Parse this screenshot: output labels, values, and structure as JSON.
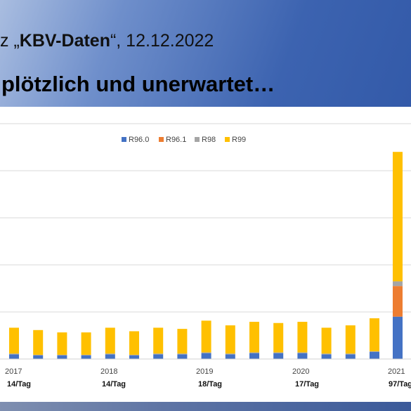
{
  "slide": {
    "subtitle_prefix": "z „",
    "subtitle_bold": "KBV-Daten",
    "subtitle_suffix": "“, 12.12.2022",
    "headline": "plötzlich und unerwartet…"
  },
  "chart_data": {
    "type": "bar",
    "stacked": true,
    "legend_position": "top",
    "grid": true,
    "ylim": [
      0,
      100
    ],
    "series": [
      {
        "name": "R96.0",
        "color": "#4472c4",
        "values": [
          2,
          1.5,
          1.5,
          1.5,
          2,
          1.5,
          2,
          2,
          2.5,
          2,
          2.5,
          2.5,
          2.5,
          2,
          2,
          3,
          18
        ]
      },
      {
        "name": "R96.1",
        "color": "#ed7d31",
        "values": [
          0,
          0,
          0,
          0,
          0,
          0,
          0,
          0,
          0,
          0,
          0,
          0,
          0,
          0,
          0,
          0,
          13
        ]
      },
      {
        "name": "R98",
        "color": "#a5a5a5",
        "values": [
          0.3,
          0.3,
          0.3,
          0.3,
          0.3,
          0.3,
          0.3,
          0.3,
          0.3,
          0.3,
          0.3,
          0.3,
          0.3,
          0.3,
          0.3,
          0.3,
          2
        ]
      },
      {
        "name": "R99",
        "color": "#ffc000",
        "values": [
          11,
          10.5,
          9.5,
          9.5,
          11,
          10,
          11,
          10.5,
          13.5,
          12,
          13,
          12.5,
          13,
          11,
          12,
          14,
          55
        ]
      }
    ],
    "year_labels": [
      "2017",
      "2018",
      "2019",
      "2020",
      "2021"
    ],
    "rate_labels": [
      "14/Tag",
      "14/Tag",
      "18/Tag",
      "17/Tag",
      "97/Tag"
    ]
  }
}
